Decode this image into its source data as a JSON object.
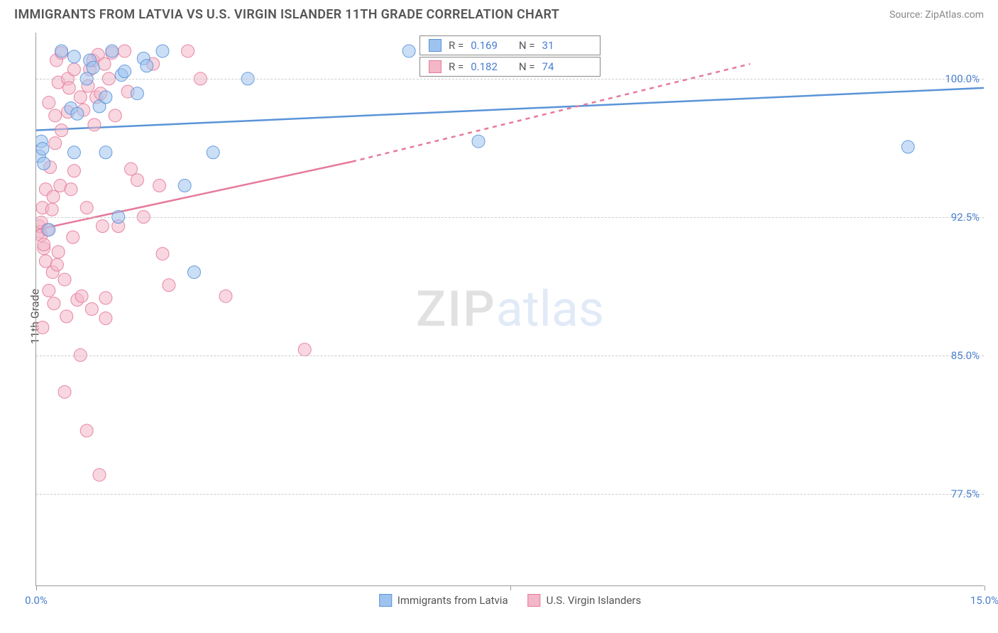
{
  "title": "IMMIGRANTS FROM LATVIA VS U.S. VIRGIN ISLANDER 11TH GRADE CORRELATION CHART",
  "source": "Source: ZipAtlas.com",
  "y_axis_label": "11th Grade",
  "watermark_a": "ZIP",
  "watermark_b": "atlas",
  "legend_top": {
    "series_a": {
      "r_label": "R =",
      "r_value": "0.169",
      "n_label": "N =",
      "n_value": "31"
    },
    "series_b": {
      "r_label": "R =",
      "r_value": "0.182",
      "n_label": "N =",
      "n_value": "74"
    }
  },
  "legend_bottom": {
    "a": "Immigrants from Latvia",
    "b": "U.S. Virgin Islanders"
  },
  "chart": {
    "type": "scatter",
    "xlim": [
      0.0,
      15.0
    ],
    "ylim": [
      72.5,
      102.5
    ],
    "y_ticks": [
      77.5,
      85.0,
      92.5,
      100.0
    ],
    "y_tick_labels": [
      "77.5%",
      "85.0%",
      "92.5%",
      "100.0%"
    ],
    "x_ticks": [
      0.0,
      7.5,
      15.0
    ],
    "x_tick_labels": [
      "0.0%",
      "",
      "15.0%"
    ],
    "x_minor_tick": 7.5,
    "marker_radius": 9,
    "marker_opacity": 0.55,
    "line_width": 2.5,
    "background_color": "#ffffff",
    "grid_color": "#cccccc",
    "series": {
      "a": {
        "name": "Immigrants from Latvia",
        "color_fill": "#9fc3ef",
        "color_stroke": "#5a94d8",
        "trend": {
          "x1": 0.0,
          "y1": 97.2,
          "x2": 15.0,
          "y2": 99.5,
          "dash_from_x": 20.0
        },
        "points": [
          [
            0.05,
            95.8
          ],
          [
            0.08,
            96.6
          ],
          [
            0.1,
            96.2
          ],
          [
            0.12,
            95.4
          ],
          [
            0.2,
            91.8
          ],
          [
            0.4,
            101.5
          ],
          [
            0.55,
            98.4
          ],
          [
            0.6,
            96.0
          ],
          [
            0.6,
            101.2
          ],
          [
            0.65,
            98.1
          ],
          [
            0.8,
            100.0
          ],
          [
            0.85,
            101.0
          ],
          [
            0.9,
            100.6
          ],
          [
            1.0,
            98.5
          ],
          [
            1.1,
            99.0
          ],
          [
            1.1,
            96.0
          ],
          [
            1.2,
            101.5
          ],
          [
            1.3,
            92.5
          ],
          [
            1.35,
            100.2
          ],
          [
            1.4,
            100.4
          ],
          [
            1.6,
            99.2
          ],
          [
            1.7,
            101.1
          ],
          [
            1.75,
            100.7
          ],
          [
            2.0,
            101.5
          ],
          [
            2.35,
            94.2
          ],
          [
            2.5,
            89.5
          ],
          [
            2.8,
            96.0
          ],
          [
            3.35,
            100.0
          ],
          [
            5.9,
            101.5
          ],
          [
            7.0,
            96.6
          ],
          [
            13.8,
            96.3
          ]
        ]
      },
      "b": {
        "name": "U.S. Virgin Islanders",
        "color_fill": "#f3b7c8",
        "color_stroke": "#e67a9a",
        "trend": {
          "x1": 0.0,
          "y1": 91.8,
          "x2": 5.0,
          "y2": 95.5,
          "dash_to_x": 11.3,
          "dash_to_y": 100.8
        },
        "points": [
          [
            0.05,
            91.7
          ],
          [
            0.05,
            92.0
          ],
          [
            0.08,
            91.5
          ],
          [
            0.08,
            92.2
          ],
          [
            0.1,
            86.5
          ],
          [
            0.1,
            93.0
          ],
          [
            0.12,
            90.8
          ],
          [
            0.12,
            91.0
          ],
          [
            0.15,
            94.0
          ],
          [
            0.15,
            90.1
          ],
          [
            0.18,
            91.8
          ],
          [
            0.2,
            88.5
          ],
          [
            0.2,
            98.7
          ],
          [
            0.22,
            95.2
          ],
          [
            0.25,
            92.9
          ],
          [
            0.26,
            89.5
          ],
          [
            0.27,
            93.6
          ],
          [
            0.28,
            87.8
          ],
          [
            0.3,
            96.5
          ],
          [
            0.3,
            98.0
          ],
          [
            0.32,
            101.0
          ],
          [
            0.33,
            89.9
          ],
          [
            0.35,
            99.8
          ],
          [
            0.35,
            90.6
          ],
          [
            0.38,
            94.2
          ],
          [
            0.4,
            97.2
          ],
          [
            0.4,
            101.4
          ],
          [
            0.45,
            89.1
          ],
          [
            0.45,
            83.0
          ],
          [
            0.48,
            87.1
          ],
          [
            0.5,
            98.2
          ],
          [
            0.5,
            100.0
          ],
          [
            0.52,
            99.5
          ],
          [
            0.55,
            94.0
          ],
          [
            0.58,
            91.4
          ],
          [
            0.6,
            100.5
          ],
          [
            0.6,
            95.0
          ],
          [
            0.65,
            88.0
          ],
          [
            0.7,
            85.0
          ],
          [
            0.7,
            99.0
          ],
          [
            0.72,
            88.2
          ],
          [
            0.75,
            98.3
          ],
          [
            0.8,
            93.0
          ],
          [
            0.8,
            80.9
          ],
          [
            0.82,
            99.6
          ],
          [
            0.85,
            100.5
          ],
          [
            0.88,
            87.5
          ],
          [
            0.9,
            101.0
          ],
          [
            0.92,
            97.5
          ],
          [
            0.95,
            99.0
          ],
          [
            0.98,
            101.3
          ],
          [
            1.0,
            78.5
          ],
          [
            1.02,
            99.2
          ],
          [
            1.05,
            92.0
          ],
          [
            1.08,
            100.8
          ],
          [
            1.1,
            88.1
          ],
          [
            1.1,
            87.0
          ],
          [
            1.15,
            100.0
          ],
          [
            1.2,
            101.4
          ],
          [
            1.25,
            98.0
          ],
          [
            1.3,
            92.0
          ],
          [
            1.4,
            101.5
          ],
          [
            1.45,
            99.3
          ],
          [
            1.5,
            95.1
          ],
          [
            1.6,
            94.5
          ],
          [
            1.7,
            92.5
          ],
          [
            1.85,
            100.8
          ],
          [
            1.95,
            94.2
          ],
          [
            2.0,
            90.5
          ],
          [
            2.1,
            88.8
          ],
          [
            2.4,
            101.5
          ],
          [
            2.6,
            100.0
          ],
          [
            3.0,
            88.2
          ],
          [
            4.25,
            85.3
          ]
        ]
      }
    }
  }
}
